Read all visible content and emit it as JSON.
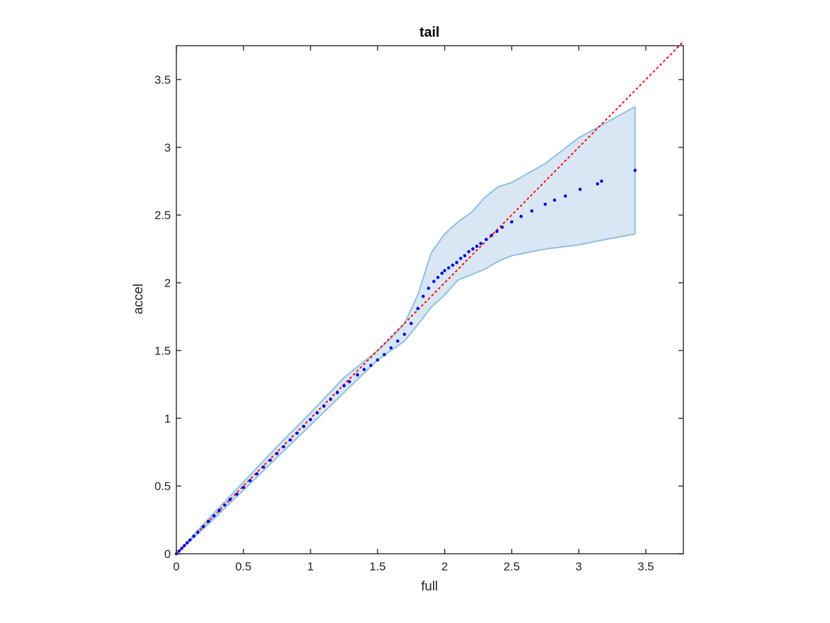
{
  "chart_data": {
    "type": "scatter",
    "title": "tail",
    "xlabel": "full",
    "ylabel": "accel",
    "xlim": [
      0,
      3.78
    ],
    "ylim": [
      0,
      3.75
    ],
    "grid": false,
    "xticks": [
      "0",
      "0.5",
      "1",
      "1.5",
      "2",
      "2.5",
      "3",
      "3.5"
    ],
    "yticks": [
      "0",
      "0.5",
      "1",
      "1.5",
      "2",
      "2.5",
      "3",
      "3.5"
    ],
    "xtick_values": [
      0,
      0.5,
      1,
      1.5,
      2,
      2.5,
      3,
      3.5
    ],
    "ytick_values": [
      0,
      0.5,
      1,
      1.5,
      2,
      2.5,
      3,
      3.5
    ],
    "colors": {
      "points": "#0000dd",
      "reference_line": "#ff0000",
      "band_fill": "#d8e7f3",
      "band_edge": "#8fbfe0",
      "axes": "#333333"
    },
    "reference_line": {
      "style": "dotted",
      "from": [
        0,
        0
      ],
      "to": [
        3.78,
        3.78
      ]
    },
    "band": {
      "x": [
        0,
        0.25,
        0.5,
        0.75,
        1.0,
        1.25,
        1.5,
        1.6,
        1.7,
        1.8,
        1.9,
        2.0,
        2.1,
        2.2,
        2.3,
        2.4,
        2.5,
        2.75,
        3.0,
        3.2,
        3.42
      ],
      "upper": [
        0,
        0.27,
        0.53,
        0.79,
        1.04,
        1.3,
        1.5,
        1.59,
        1.7,
        1.91,
        2.22,
        2.36,
        2.45,
        2.52,
        2.63,
        2.71,
        2.74,
        2.88,
        3.07,
        3.18,
        3.3
      ],
      "lower": [
        0,
        0.23,
        0.47,
        0.71,
        0.95,
        1.19,
        1.43,
        1.5,
        1.57,
        1.69,
        1.82,
        1.91,
        2.02,
        2.06,
        2.1,
        2.16,
        2.2,
        2.25,
        2.28,
        2.32,
        2.36
      ]
    },
    "series": [
      {
        "x": [
          0,
          0.02,
          0.04,
          0.06,
          0.08,
          0.1,
          0.13,
          0.16,
          0.2,
          0.24,
          0.28,
          0.32,
          0.36,
          0.4,
          0.45,
          0.5,
          0.55,
          0.6,
          0.65,
          0.7,
          0.75,
          0.8,
          0.85,
          0.9,
          0.95,
          1.0,
          1.05,
          1.1,
          1.15,
          1.2,
          1.25,
          1.29,
          1.35,
          1.4,
          1.45,
          1.5,
          1.55,
          1.6,
          1.65,
          1.7,
          1.75,
          1.8,
          1.84,
          1.88,
          1.92,
          1.95,
          1.98,
          2.0,
          2.03,
          2.06,
          2.09,
          2.12,
          2.15,
          2.18,
          2.21,
          2.24,
          2.27,
          2.31,
          2.35,
          2.39,
          2.43,
          2.5,
          2.57,
          2.65,
          2.75,
          2.82,
          2.9,
          3.01,
          3.14,
          3.17,
          3.42
        ],
        "y": [
          0,
          0.02,
          0.04,
          0.06,
          0.08,
          0.1,
          0.13,
          0.16,
          0.2,
          0.24,
          0.28,
          0.32,
          0.36,
          0.4,
          0.44,
          0.49,
          0.54,
          0.59,
          0.64,
          0.69,
          0.74,
          0.79,
          0.84,
          0.89,
          0.94,
          0.99,
          1.04,
          1.09,
          1.14,
          1.19,
          1.24,
          1.27,
          1.32,
          1.36,
          1.39,
          1.43,
          1.47,
          1.52,
          1.57,
          1.62,
          1.7,
          1.81,
          1.9,
          1.96,
          2.01,
          2.04,
          2.07,
          2.09,
          2.11,
          2.13,
          2.15,
          2.18,
          2.2,
          2.23,
          2.25,
          2.27,
          2.29,
          2.32,
          2.35,
          2.38,
          2.41,
          2.45,
          2.49,
          2.53,
          2.58,
          2.61,
          2.64,
          2.69,
          2.73,
          2.75,
          2.83
        ]
      }
    ]
  }
}
